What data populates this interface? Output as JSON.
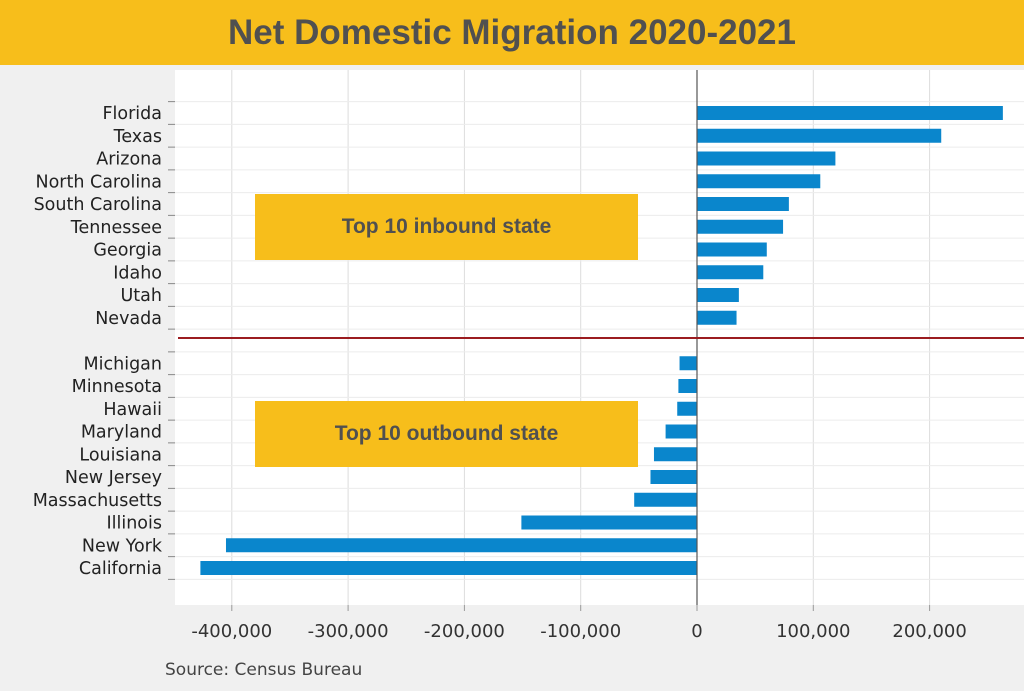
{
  "chart_data": {
    "type": "bar",
    "orientation": "horizontal",
    "title": "Net Domestic Migration 2020-2021",
    "xlabel": "",
    "ylabel": "",
    "xlim": [
      -450000,
      280000
    ],
    "x_ticks": [
      "-400,000",
      "-300,000",
      "-200,000",
      "-100,000",
      "0",
      "100,000",
      "200,000"
    ],
    "x_tick_values": [
      -400000,
      -300000,
      -200000,
      -100000,
      0,
      100000,
      200000
    ],
    "grid": "vertical",
    "bar_color": "#0a86cc",
    "divider_color": "#9b1c20",
    "groups": [
      {
        "label": "Top 10 inbound state",
        "categories": [
          "Florida",
          "Texas",
          "Arizona",
          "North Carolina",
          "South Carolina",
          "Tennessee",
          "Georgia",
          "Idaho",
          "Utah",
          "Nevada"
        ],
        "values": [
          263000,
          210000,
          119000,
          106000,
          79000,
          74000,
          60000,
          57000,
          36000,
          34000
        ]
      },
      {
        "label": "Top 10 outbound state",
        "categories": [
          "Michigan",
          "Minnesota",
          "Hawaii",
          "Maryland",
          "Louisiana",
          "New Jersey",
          "Massachusetts",
          "Illinois",
          "New York",
          "California"
        ],
        "values": [
          -15000,
          -16000,
          -17000,
          -27000,
          -37000,
          -40000,
          -54000,
          -151000,
          -405000,
          -427000
        ]
      }
    ],
    "source": "Source: Census Bureau"
  }
}
